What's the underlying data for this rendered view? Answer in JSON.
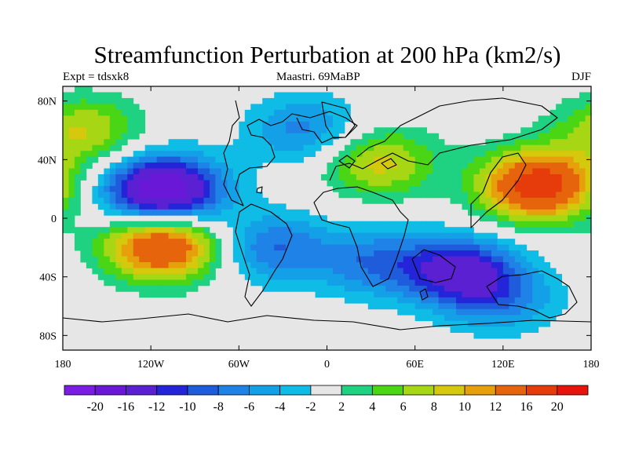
{
  "header": {
    "title": "Streamfunction Perturbation at 200 hPa (km2/s)",
    "left": "Expt = tdsxk8",
    "center": "Maastri.  69MaBP",
    "right": "DJF"
  },
  "chart_data": {
    "type": "heatmap",
    "title": "Streamfunction Perturbation at 200 hPa (km2/s)",
    "units": "km2/s",
    "xlim": [
      -180,
      180
    ],
    "ylim": [
      -90,
      90
    ],
    "x_ticks": [
      {
        "value": -180,
        "label": "180"
      },
      {
        "value": -120,
        "label": "120W"
      },
      {
        "value": -60,
        "label": "60W"
      },
      {
        "value": 0,
        "label": "0"
      },
      {
        "value": 60,
        "label": "60E"
      },
      {
        "value": 120,
        "label": "120E"
      },
      {
        "value": 180,
        "label": "180"
      }
    ],
    "y_ticks": [
      {
        "value": 80,
        "label": "80N"
      },
      {
        "value": 40,
        "label": "40N"
      },
      {
        "value": 0,
        "label": "0"
      },
      {
        "value": -40,
        "label": "40S"
      },
      {
        "value": -80,
        "label": "80S"
      }
    ],
    "levels": [
      -20,
      -16,
      -12,
      -10,
      -8,
      -6,
      -4,
      -2,
      2,
      4,
      6,
      8,
      10,
      12,
      16,
      20
    ],
    "level_labels": [
      "-20",
      "-16",
      "-12",
      "-10",
      "-8",
      "-6",
      "-4",
      "-2",
      "2",
      "4",
      "6",
      "8",
      "10",
      "12",
      "16",
      "20"
    ],
    "colors": [
      "#7a1ee6",
      "#6a18d8",
      "#5a20d2",
      "#2424d8",
      "#1e5cdc",
      "#1e82e6",
      "#14a0e6",
      "#0fbce6",
      "#e6e6e6",
      "#1ed282",
      "#4ad614",
      "#a6d614",
      "#d6c80c",
      "#e6a00c",
      "#e6640c",
      "#e63c0c",
      "#e6140c"
    ],
    "approx_field_features": [
      {
        "lon": -112,
        "lat": 18,
        "value": -21
      },
      {
        "lon": -112,
        "lat": -18,
        "value": 18
      },
      {
        "lon": 144,
        "lat": 22,
        "value": 19
      },
      {
        "lon": -165,
        "lat": 60,
        "value": 8
      },
      {
        "lon": 35,
        "lat": 38,
        "value": 9
      },
      {
        "lon": 90,
        "lat": -36,
        "value": -13
      },
      {
        "lon": 30,
        "lat": -30,
        "value": -7
      },
      {
        "lon": -38,
        "lat": -20,
        "value": -8
      },
      {
        "lon": -15,
        "lat": 60,
        "value": -7
      },
      {
        "lon": 120,
        "lat": -55,
        "value": -6
      }
    ]
  }
}
